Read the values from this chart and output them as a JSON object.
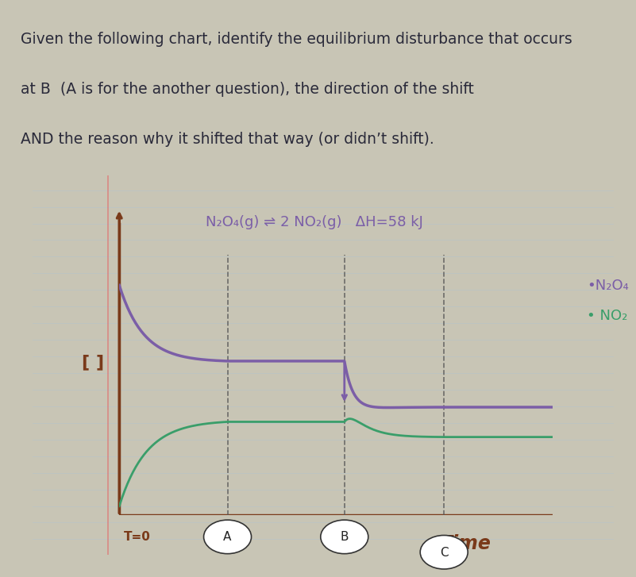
{
  "title_lines": [
    "Given the following chart, identify the equilibrium disturbance that occurs",
    "at B  (A is for the another question), the direction of the shift",
    "AND the reason why it shifted that way (or didn’t shift)."
  ],
  "equation": "N₂O₄(g) ⇌ 2 NO₂(g)   ΔH=58 kJ",
  "legend_n2o4": "•N₂O₄",
  "legend_no2": "• NO₂",
  "ylabel": "[ ]",
  "xlabel_time": "Time",
  "label_t0": "T=0",
  "label_A": "A",
  "label_B": "B",
  "label_C": "C",
  "bg_color": "#d8d5c8",
  "paper_color": "#e8e5d8",
  "axis_color": "#7a3a1a",
  "purple_color": "#7b5ea7",
  "green_color": "#3a9e6a",
  "text_color": "#2a2a3a",
  "purple_legend_color": "#7b5ea7",
  "green_legend_color": "#3a9e6a"
}
